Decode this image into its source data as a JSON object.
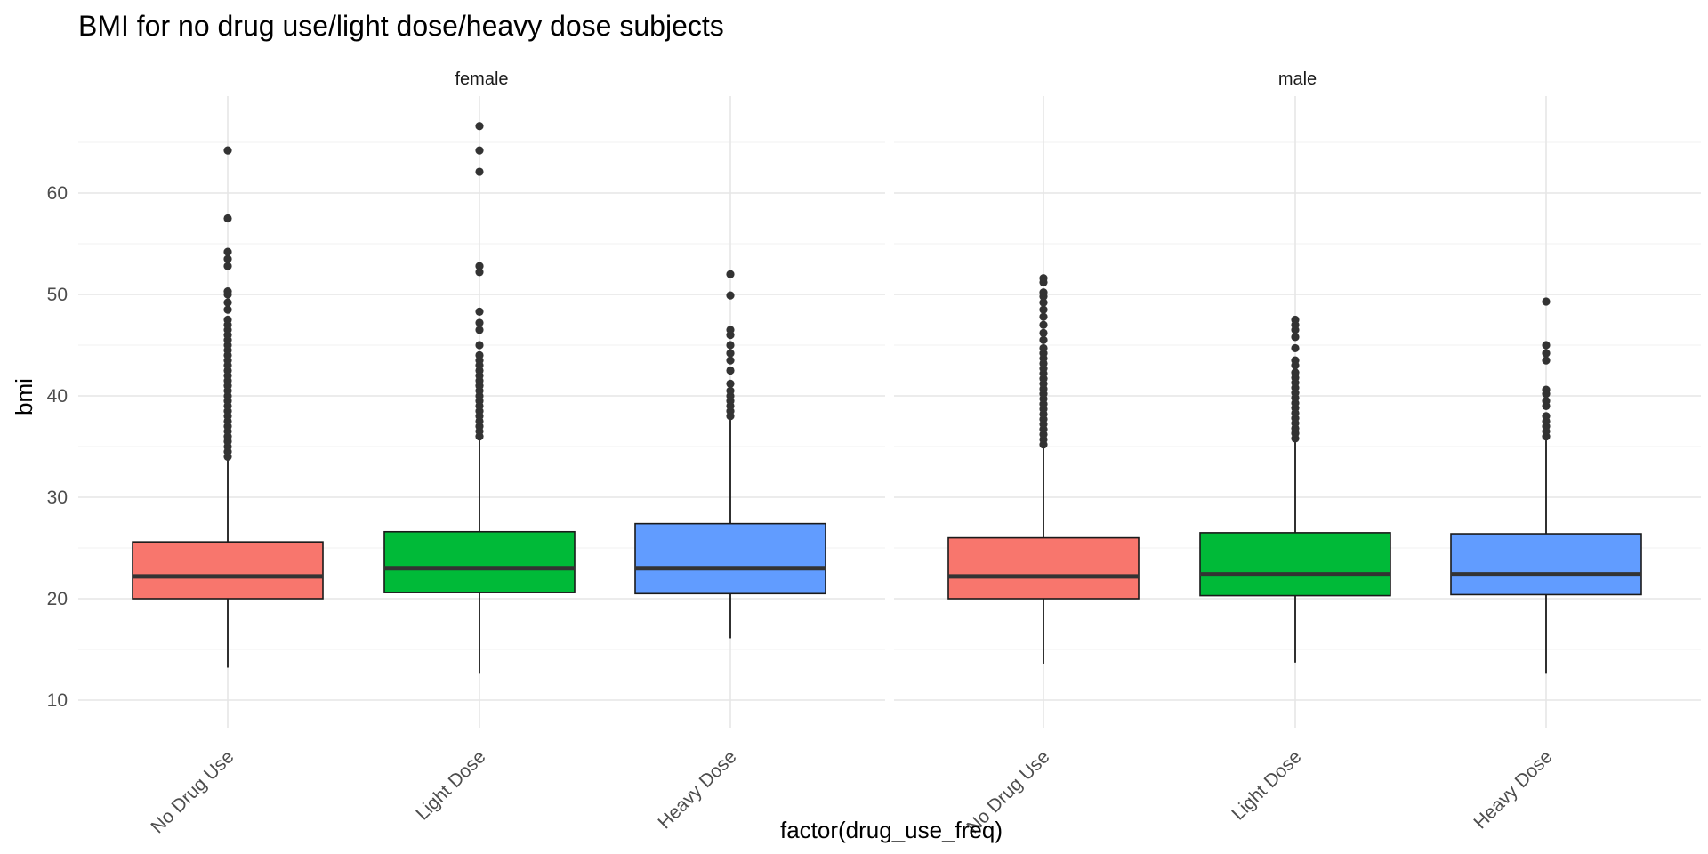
{
  "chart_data": {
    "type": "boxplot",
    "title": "BMI for no drug use/light dose/heavy dose subjects",
    "xlabel": "factor(drug_use_freq)",
    "ylabel": "bmi",
    "ylim": [
      10,
      68
    ],
    "yticks": [
      10,
      20,
      30,
      40,
      50,
      60
    ],
    "grid": true,
    "legend": "none",
    "categories": [
      "No Drug Use",
      "Light Dose",
      "Heavy Dose"
    ],
    "colors": [
      "#F8766D",
      "#00BA38",
      "#619CFF"
    ],
    "panels": [
      {
        "name": "female",
        "boxes": [
          {
            "category": "No Drug Use",
            "lower_whisker": 13.2,
            "q1": 20.0,
            "median": 22.2,
            "q3": 25.6,
            "upper_whisker": 33.9,
            "outliers": [
              34.0,
              34.5,
              35.0,
              35.5,
              36.0,
              36.5,
              37.0,
              37.5,
              38.0,
              38.5,
              39.0,
              39.5,
              40.0,
              40.5,
              41.0,
              41.5,
              42.0,
              42.5,
              43.0,
              43.5,
              44.0,
              44.5,
              45.0,
              45.5,
              46.0,
              46.5,
              47.0,
              47.5,
              48.5,
              49.2,
              50.0,
              50.3,
              52.8,
              53.5,
              54.2,
              57.5,
              64.2
            ]
          },
          {
            "category": "Light Dose",
            "lower_whisker": 12.6,
            "q1": 20.6,
            "median": 23.0,
            "q3": 26.6,
            "upper_whisker": 35.8,
            "outliers": [
              36.0,
              36.5,
              37.0,
              37.5,
              38.0,
              38.5,
              39.0,
              39.5,
              40.0,
              40.5,
              41.0,
              41.5,
              42.0,
              42.5,
              43.0,
              43.5,
              44.0,
              45.0,
              46.5,
              47.2,
              48.3,
              52.2,
              52.8,
              62.1,
              64.2,
              66.6
            ]
          },
          {
            "category": "Heavy Dose",
            "lower_whisker": 16.1,
            "q1": 20.5,
            "median": 23.0,
            "q3": 27.4,
            "upper_whisker": 37.8,
            "outliers": [
              38.0,
              38.5,
              39.0,
              39.5,
              40.0,
              40.5,
              41.2,
              42.5,
              43.5,
              44.2,
              45.0,
              46.0,
              46.5,
              49.9,
              52.0
            ]
          }
        ]
      },
      {
        "name": "male",
        "boxes": [
          {
            "category": "No Drug Use",
            "lower_whisker": 13.6,
            "q1": 20.0,
            "median": 22.2,
            "q3": 26.0,
            "upper_whisker": 35.0,
            "outliers": [
              35.2,
              35.7,
              36.2,
              36.7,
              37.2,
              37.7,
              38.2,
              38.7,
              39.2,
              39.7,
              40.2,
              40.7,
              41.2,
              41.7,
              42.2,
              42.7,
              43.2,
              43.7,
              44.2,
              44.7,
              45.5,
              46.2,
              47.0,
              47.8,
              48.5,
              49.2,
              49.8,
              50.2,
              51.2,
              51.6
            ]
          },
          {
            "category": "Light Dose",
            "lower_whisker": 13.7,
            "q1": 20.3,
            "median": 22.4,
            "q3": 26.5,
            "upper_whisker": 35.5,
            "outliers": [
              35.8,
              36.3,
              36.8,
              37.3,
              37.8,
              38.3,
              38.8,
              39.3,
              39.8,
              40.3,
              40.8,
              41.3,
              41.8,
              42.3,
              43.0,
              43.5,
              44.7,
              45.8,
              46.5,
              47.0,
              47.5
            ]
          },
          {
            "category": "Heavy Dose",
            "lower_whisker": 12.6,
            "q1": 20.4,
            "median": 22.4,
            "q3": 26.4,
            "upper_whisker": 35.7,
            "outliers": [
              36.0,
              36.5,
              37.0,
              37.5,
              38.0,
              39.0,
              39.5,
              40.2,
              40.6,
              43.5,
              44.2,
              45.0,
              49.3
            ]
          }
        ]
      }
    ]
  }
}
